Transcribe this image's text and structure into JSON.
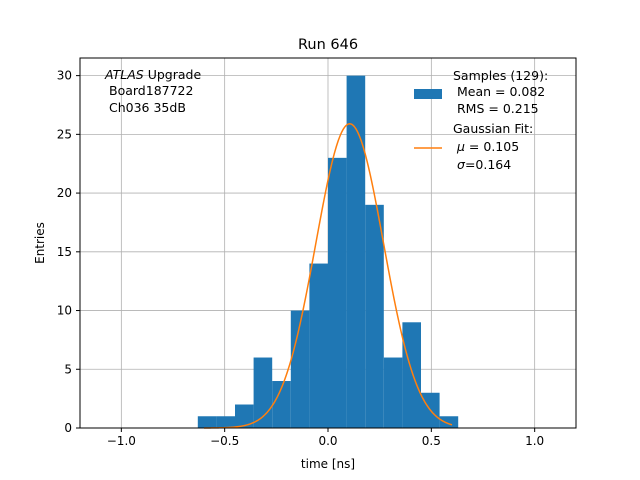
{
  "chart_data": {
    "type": "bar",
    "title": "Run 646",
    "xlabel": "time [ns]",
    "ylabel": "Entries",
    "xlim": [
      -1.2,
      1.2
    ],
    "ylim": [
      0,
      31.5
    ],
    "grid": true,
    "xticks": [
      -1.0,
      -0.5,
      0.0,
      0.5,
      1.0
    ],
    "xtick_labels": [
      "−1.0",
      "−0.5",
      "0.0",
      "0.5",
      "1.0"
    ],
    "yticks": [
      0,
      5,
      10,
      15,
      20,
      25,
      30
    ],
    "ytick_labels": [
      "0",
      "5",
      "10",
      "15",
      "20",
      "25",
      "30"
    ],
    "annotation": {
      "italic": "ATLAS",
      "rest": " Upgrade",
      "line2": "Board187722",
      "line3": "Ch036 35dB"
    },
    "histogram": {
      "name": "Samples (129):",
      "color": "#1f77b4",
      "bins": [
        {
          "left": -0.63,
          "right": -0.54,
          "count": 1
        },
        {
          "left": -0.54,
          "right": -0.45,
          "count": 1
        },
        {
          "left": -0.45,
          "right": -0.36,
          "count": 2
        },
        {
          "left": -0.36,
          "right": -0.27,
          "count": 6
        },
        {
          "left": -0.27,
          "right": -0.18,
          "count": 4
        },
        {
          "left": -0.18,
          "right": -0.09,
          "count": 10
        },
        {
          "left": -0.09,
          "right": 0.0,
          "count": 14
        },
        {
          "left": 0.0,
          "right": 0.09,
          "count": 23
        },
        {
          "left": 0.09,
          "right": 0.18,
          "count": 30
        },
        {
          "left": 0.18,
          "right": 0.27,
          "count": 19
        },
        {
          "left": 0.27,
          "right": 0.36,
          "count": 6
        },
        {
          "left": 0.36,
          "right": 0.45,
          "count": 9
        },
        {
          "left": 0.45,
          "right": 0.54,
          "count": 3
        },
        {
          "left": 0.54,
          "right": 0.63,
          "count": 1
        }
      ]
    },
    "fit": {
      "name": "Gaussian Fit:",
      "color": "#ff7f0e",
      "mu": 0.105,
      "sigma": 0.164,
      "amplitude": 25.9,
      "x_range": [
        -0.6,
        0.6
      ]
    },
    "legend": {
      "position": "upper-right",
      "samples_title": "Samples (129):",
      "samples_mean": "Mean = 0.082",
      "samples_rms": "RMS = 0.215",
      "fit_title": "Gaussian Fit:",
      "fit_mu_symbol": "μ",
      "fit_mu_text": " = 0.105",
      "fit_sigma_symbol": "σ",
      "fit_sigma_text": "=0.164"
    }
  }
}
